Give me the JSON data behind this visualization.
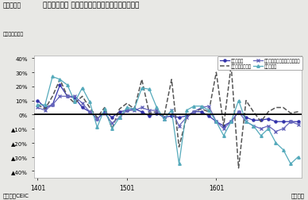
{
  "title": "シンガポール 製造業生産指数（業種別）の伸び率",
  "fig_label": "（図表４）",
  "ylabel_note": "（前年同月比）",
  "xlabel_note": "（月次）",
  "source": "（資料）CEIC",
  "bg_color": "#e8e8e5",
  "plot_bg": "#ffffff",
  "ylim": [
    -45,
    42
  ],
  "ytick_vals": [
    40,
    30,
    20,
    10,
    0,
    -10,
    -20,
    -30,
    -40
  ],
  "xtick_pos": [
    0,
    12,
    24
  ],
  "xtick_labels": [
    "1401",
    "1501",
    "1601"
  ],
  "n_points": 36,
  "mfg": [
    10,
    5,
    7,
    21,
    13,
    12,
    5,
    2,
    -3,
    2,
    -2,
    2,
    3,
    4,
    2,
    -1,
    1,
    -2,
    -1,
    -2,
    -1,
    2,
    2,
    -1,
    -5,
    -8,
    -5,
    2,
    -2,
    -4,
    -4,
    -3,
    -5,
    -5,
    -5,
    -5
  ],
  "pharma": [
    7,
    4,
    13,
    25,
    13,
    8,
    13,
    5,
    -2,
    5,
    -10,
    4,
    8,
    4,
    25,
    1,
    2,
    -1,
    25,
    -23,
    -2,
    2,
    4,
    2,
    30,
    -8,
    35,
    -38,
    10,
    2,
    -5,
    2,
    5,
    5,
    1,
    2
  ],
  "comp": [
    5,
    3,
    7,
    13,
    13,
    13,
    8,
    2,
    -3,
    1,
    -6,
    -2,
    3,
    3,
    5,
    3,
    3,
    -3,
    3,
    -8,
    -2,
    2,
    5,
    6,
    -5,
    -10,
    -5,
    2,
    -5,
    -8,
    -10,
    -8,
    -12,
    -10,
    -5,
    -7
  ],
  "mach": [
    7,
    7,
    27,
    25,
    21,
    9,
    19,
    9,
    -9,
    4,
    -10,
    -2,
    5,
    4,
    19,
    18,
    5,
    -3,
    3,
    -35,
    3,
    6,
    6,
    3,
    -5,
    -15,
    -5,
    10,
    -5,
    -8,
    -15,
    -10,
    -20,
    -25,
    -35,
    -30
  ],
  "mfg_color": "#3333aa",
  "pharma_color": "#555555",
  "comp_color": "#6666bb",
  "mach_color": "#55aabb",
  "legend_labels": [
    "製造業生産",
    "医薬・バイオ製品",
    "コンピュータ・電子・光学製品",
    "機械・設備"
  ]
}
